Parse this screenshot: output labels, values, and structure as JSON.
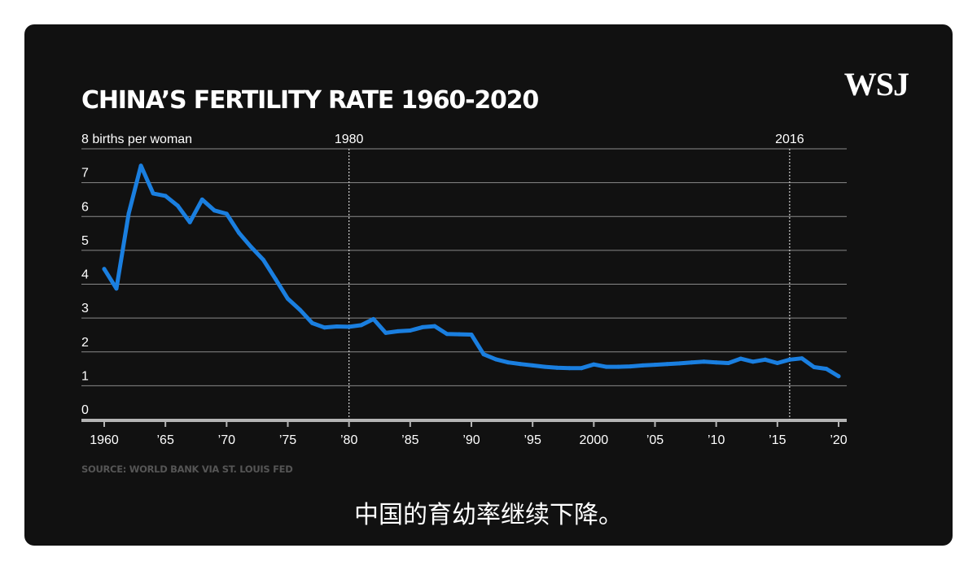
{
  "header": {
    "title": "CHINA’S FERTILITY RATE 1960-2020",
    "logo": "WSJ"
  },
  "footer": {
    "source": "SOURCE: WORLD BANK VIA ST. LOUIS FED"
  },
  "caption": {
    "subtitle": "中国的育幼率继续下降。"
  },
  "chart_data": {
    "type": "line",
    "title": "CHINA’S FERTILITY RATE 1960-2020",
    "ylabel": "births per woman",
    "y_top_label": "8 births per woman",
    "ylim": [
      0,
      8
    ],
    "xlim": [
      1960,
      2020
    ],
    "y_ticks": [
      {
        "value": 0,
        "label": "0"
      },
      {
        "value": 1,
        "label": "1"
      },
      {
        "value": 2,
        "label": "2"
      },
      {
        "value": 3,
        "label": "3"
      },
      {
        "value": 4,
        "label": "4"
      },
      {
        "value": 5,
        "label": "5"
      },
      {
        "value": 6,
        "label": "6"
      },
      {
        "value": 7,
        "label": "7"
      },
      {
        "value": 8,
        "label": ""
      }
    ],
    "x_ticks": [
      {
        "value": 1960,
        "label": "1960"
      },
      {
        "value": 1965,
        "label": "’65"
      },
      {
        "value": 1970,
        "label": "’70"
      },
      {
        "value": 1975,
        "label": "’75"
      },
      {
        "value": 1980,
        "label": "’80"
      },
      {
        "value": 1985,
        "label": "’85"
      },
      {
        "value": 1990,
        "label": "’90"
      },
      {
        "value": 1995,
        "label": "’95"
      },
      {
        "value": 2000,
        "label": "2000"
      },
      {
        "value": 2005,
        "label": "’05"
      },
      {
        "value": 2010,
        "label": "’10"
      },
      {
        "value": 2015,
        "label": "’15"
      },
      {
        "value": 2020,
        "label": "’20"
      }
    ],
    "annotations": [
      {
        "x": 1980,
        "label": "1980"
      },
      {
        "x": 2016,
        "label": "2016"
      }
    ],
    "grid": true,
    "colors": {
      "line": "#1a7fe0",
      "grid": "#8a8a8a",
      "annotation": "#d0d0d0"
    },
    "series": [
      {
        "x": [
          1960,
          1961,
          1962,
          1963,
          1964,
          1965,
          1966,
          1967,
          1968,
          1969,
          1970,
          1971,
          1972,
          1973,
          1974,
          1975,
          1976,
          1977,
          1978,
          1979,
          1980,
          1981,
          1982,
          1983,
          1984,
          1985,
          1986,
          1987,
          1988,
          1989,
          1990,
          1991,
          1992,
          1993,
          1994,
          1995,
          1996,
          1997,
          1998,
          1999,
          2000,
          2001,
          2002,
          2003,
          2004,
          2005,
          2006,
          2007,
          2008,
          2009,
          2010,
          2011,
          2012,
          2013,
          2014,
          2015,
          2016,
          2017,
          2018,
          2019,
          2020
        ],
        "values": [
          4.45,
          3.87,
          6.09,
          7.5,
          6.68,
          6.61,
          6.32,
          5.83,
          6.5,
          6.18,
          6.08,
          5.52,
          5.1,
          4.72,
          4.15,
          3.57,
          3.24,
          2.85,
          2.72,
          2.75,
          2.74,
          2.79,
          2.97,
          2.56,
          2.61,
          2.63,
          2.73,
          2.76,
          2.53,
          2.52,
          2.51,
          1.93,
          1.78,
          1.69,
          1.64,
          1.6,
          1.56,
          1.53,
          1.52,
          1.52,
          1.63,
          1.56,
          1.56,
          1.57,
          1.6,
          1.62,
          1.64,
          1.66,
          1.69,
          1.71,
          1.69,
          1.67,
          1.8,
          1.71,
          1.77,
          1.67,
          1.77,
          1.81,
          1.55,
          1.5,
          1.28
        ]
      }
    ]
  }
}
